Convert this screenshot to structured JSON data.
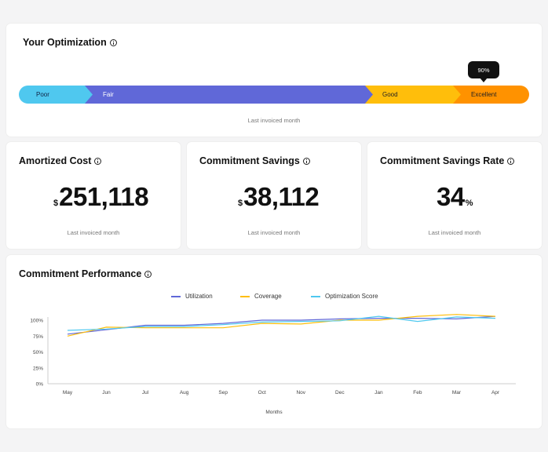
{
  "optimization": {
    "title": "Your Optimization",
    "segments": [
      {
        "label": "Poor",
        "color": "#4fc8ef"
      },
      {
        "label": "Fair",
        "color": "#6068d8"
      },
      {
        "label": "Good",
        "color": "#ffbe0b"
      },
      {
        "label": "Excellent",
        "color": "#ff9200"
      }
    ],
    "marker_label": "90%",
    "marker_value": 90,
    "caption": "Last invoiced month"
  },
  "kpis": [
    {
      "title": "Amortized Cost",
      "prefix": "$",
      "value": "251,118",
      "suffix": "",
      "caption": "Last invoiced month"
    },
    {
      "title": "Commitment Savings",
      "prefix": "$",
      "value": "38,112",
      "suffix": "",
      "caption": "Last invoiced month"
    },
    {
      "title": "Commitment Savings Rate",
      "prefix": "",
      "value": "34",
      "suffix": "%",
      "caption": "Last invoiced month"
    }
  ],
  "performance": {
    "title": "Commitment Performance",
    "chart_data": {
      "type": "line",
      "categories": [
        "May",
        "Jun",
        "Jul",
        "Aug",
        "Sep",
        "Oct",
        "Nov",
        "Dec",
        "Jan",
        "Feb",
        "Mar",
        "Apr"
      ],
      "series": [
        {
          "name": "Utilization",
          "color": "#6068d8",
          "values": [
            78,
            85,
            92,
            92,
            95,
            100,
            100,
            102,
            103,
            103,
            102,
            106
          ]
        },
        {
          "name": "Coverage",
          "color": "#ffbe0b",
          "values": [
            75,
            89,
            88,
            88,
            88,
            95,
            94,
            100,
            100,
            106,
            109,
            106
          ]
        },
        {
          "name": "Optimization Score",
          "color": "#4fc8ef",
          "values": [
            84,
            86,
            90,
            90,
            93,
            97,
            98,
            99,
            106,
            98,
            105,
            103
          ]
        }
      ],
      "y_ticks": [
        "100%",
        "75%",
        "50%",
        "25%",
        "0%"
      ],
      "ylim": [
        0,
        100
      ],
      "xlabel": "Months",
      "ylabel": "",
      "grid": false,
      "legend": "top-center"
    }
  }
}
